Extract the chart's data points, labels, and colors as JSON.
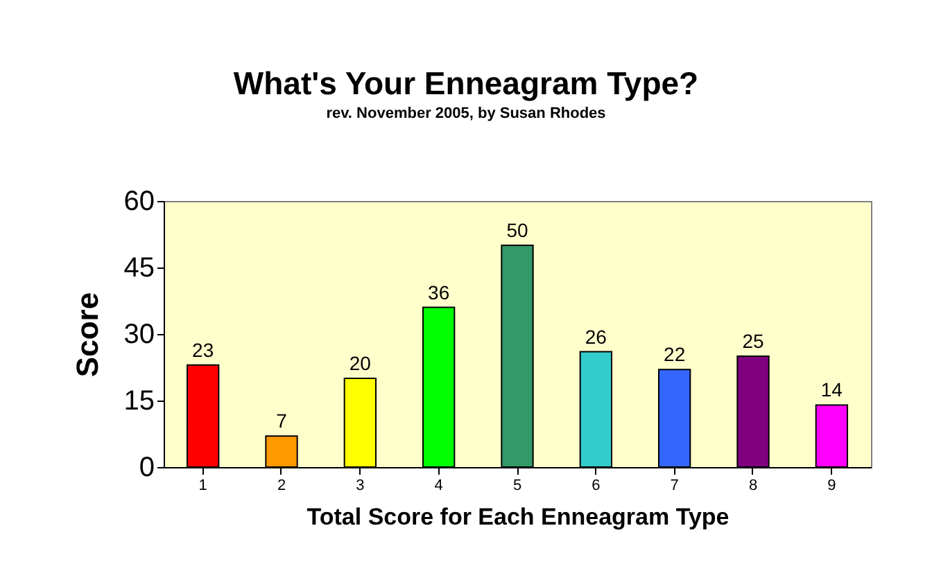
{
  "chart_data": {
    "type": "bar",
    "title": "What's Your Enneagram Type?",
    "subtitle": "rev. November 2005, by Susan Rhodes",
    "xlabel": "Total Score for Each Enneagram Type",
    "ylabel": "Score",
    "categories": [
      "1",
      "2",
      "3",
      "4",
      "5",
      "6",
      "7",
      "8",
      "9"
    ],
    "values": [
      23,
      7,
      20,
      36,
      50,
      26,
      22,
      25,
      14
    ],
    "colors": [
      "#ff0000",
      "#ff9900",
      "#ffff00",
      "#00ff00",
      "#339966",
      "#33cccc",
      "#3366ff",
      "#800080",
      "#ff00ff"
    ],
    "ylim": [
      0,
      60
    ],
    "yticks": [
      0,
      15,
      30,
      45,
      60
    ],
    "grid": false,
    "data_labels": true
  }
}
